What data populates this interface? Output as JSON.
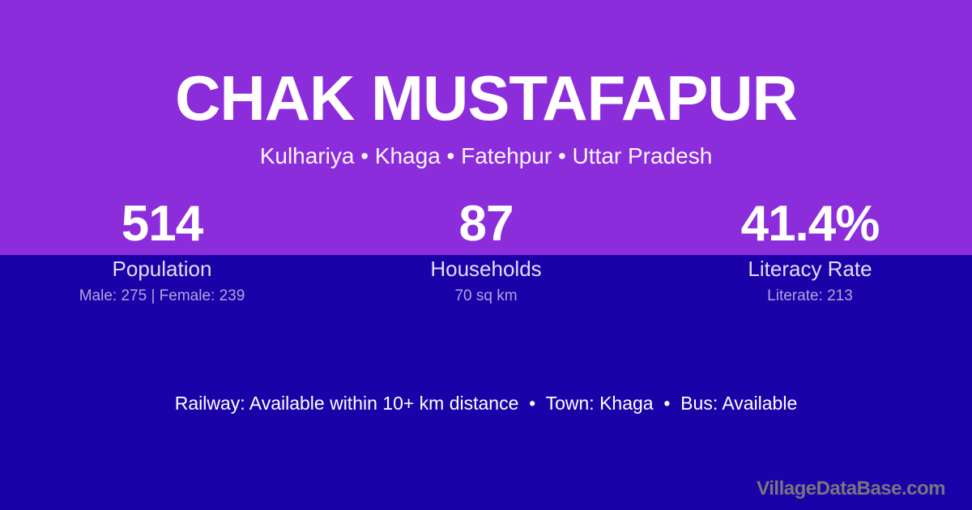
{
  "card": {
    "title": "CHAK MUSTAFAPUR",
    "location_line": "Kulhariya • Khaga • Fatehpur • Uttar Pradesh"
  },
  "stats": [
    {
      "value": "514",
      "label": "Population",
      "detail": "Male: 275 | Female: 239"
    },
    {
      "value": "87",
      "label": "Households",
      "detail": "70 sq km"
    },
    {
      "value": "41.4%",
      "label": "Literacy Rate",
      "detail": "Literate: 213"
    }
  ],
  "footer": {
    "amenities": "Railway: Available within 10+ km distance  •  Town: Khaga  •  Bus: Available",
    "watermark": "VillageDataBase.com"
  },
  "colors": {
    "top_background": "#8C2DDC",
    "bottom_background": "#1A02A8",
    "primary_text": "#FFFFFF",
    "label_text": "#E3DDF6",
    "detail_text": "#B1A5DC",
    "watermark_text": "#77767E"
  }
}
